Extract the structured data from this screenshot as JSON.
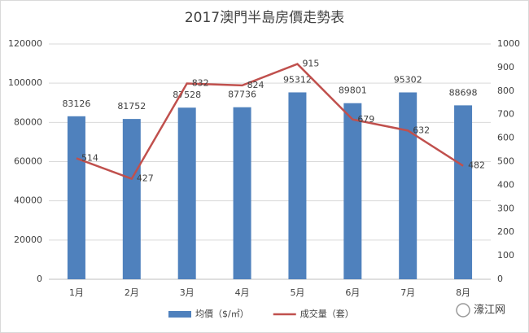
{
  "chart_data": {
    "type": "bar",
    "title": "2017澳門半島房價走勢表",
    "categories": [
      "1月",
      "2月",
      "3月",
      "4月",
      "5月",
      "6月",
      "7月",
      "8月"
    ],
    "series": [
      {
        "name": "均價（$/㎡）",
        "type": "bar",
        "color": "#4f81bd",
        "values": [
          83126,
          81752,
          87528,
          87736,
          95312,
          89801,
          95302,
          88698
        ]
      },
      {
        "name": "成交量（套）",
        "type": "line",
        "axis": "y2",
        "color": "#c0504d",
        "values": [
          514,
          427,
          832,
          824,
          915,
          679,
          632,
          482
        ]
      }
    ],
    "ylim": [
      0,
      120000
    ],
    "yticks": [
      0,
      20000,
      40000,
      60000,
      80000,
      100000,
      120000
    ],
    "y2lim": [
      0,
      1000
    ],
    "y2ticks": [
      0,
      100,
      200,
      300,
      400,
      500,
      600,
      700,
      800,
      900,
      1000
    ],
    "grid": true,
    "legend": "bottom"
  },
  "watermark": "濠江网"
}
